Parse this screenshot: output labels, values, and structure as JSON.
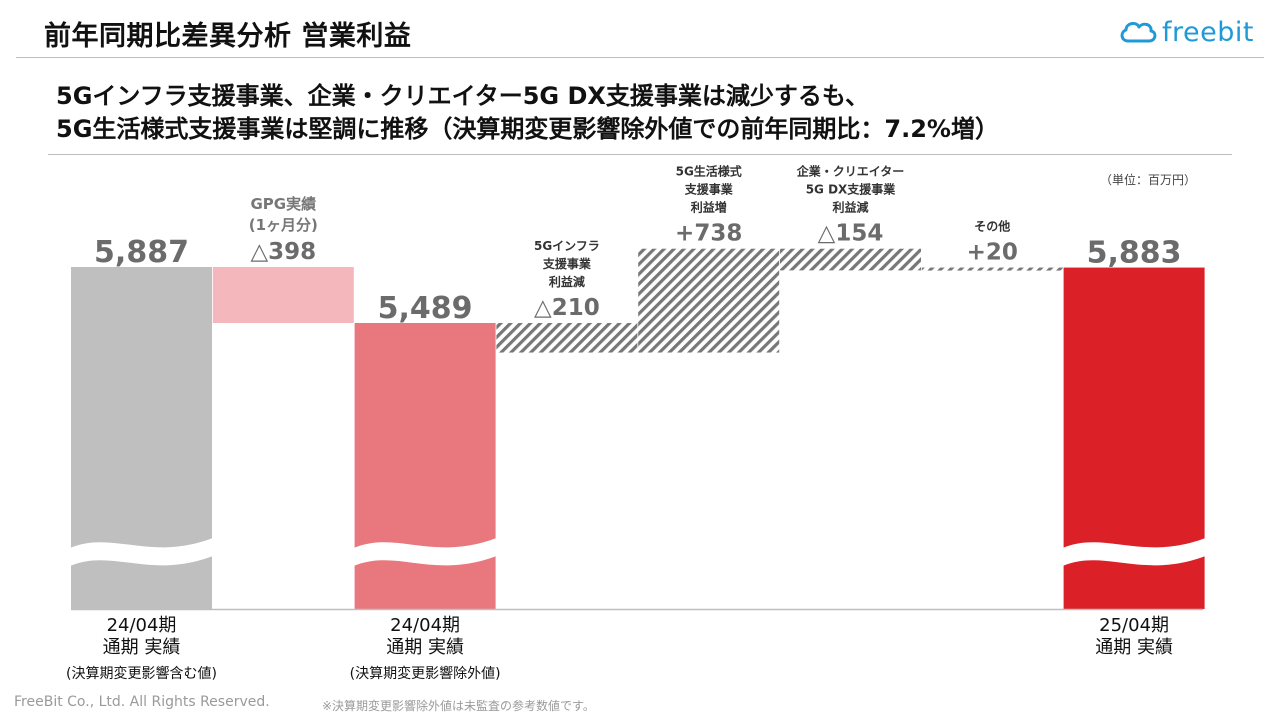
{
  "header": {
    "title": "前年同期比差異分析 営業利益",
    "logo_text": "freebit"
  },
  "subtitle": {
    "line1": "5Gインフラ支援事業、企業・クリエイター5G DX支援事業は減少するも、",
    "line2": "5G生活様式支援事業は堅調に推移（決算期変更影響除外値での前年同期比：7.2%増）"
  },
  "unit": "（単位：百万円）",
  "footer": {
    "copyright": "FreeBit Co., Ltd. All Rights Reserved.",
    "note": "※決算期変更影響除外値は未監査の参考数値です。"
  },
  "colors": {
    "gray_total": "#bfbfbf",
    "pink_light": "#f4b8bc",
    "pink_mid": "#e8787e",
    "red_total": "#dc2028",
    "hatch": "#777777",
    "value_text": "#6b6b6b"
  },
  "chart_data": {
    "type": "bar",
    "subtype": "waterfall",
    "axis_break": true,
    "bars": [
      {
        "kind": "total",
        "value": 5887,
        "value_label": "5,887",
        "label_lines": [],
        "category_lines": [
          "24/04期",
          "通期 実績"
        ],
        "category_note": "(決算期変更影響含む値)",
        "color": "#bfbfbf",
        "pattern": "solid"
      },
      {
        "kind": "delta",
        "value": -398,
        "value_label": "△398",
        "label_lines": [
          "GPG実績",
          "(1ヶ月分)"
        ],
        "category_lines": [],
        "category_note": "",
        "color": "#f4b8bc",
        "pattern": "solid"
      },
      {
        "kind": "total",
        "value": 5489,
        "value_label": "5,489",
        "label_lines": [],
        "category_lines": [
          "24/04期",
          "通期 実績"
        ],
        "category_note": "(決算期変更影響除外値)",
        "color": "#e8787e",
        "pattern": "solid"
      },
      {
        "kind": "delta",
        "value": -210,
        "value_label": "△210",
        "label_lines": [
          "5Gインフラ",
          "支援事業",
          "利益減"
        ],
        "category_lines": [],
        "category_note": "",
        "color": "#777777",
        "pattern": "hatch"
      },
      {
        "kind": "delta",
        "value": 738,
        "value_label": "+738",
        "label_lines": [
          "5G生活様式",
          "支援事業",
          "利益増"
        ],
        "category_lines": [],
        "category_note": "",
        "color": "#777777",
        "pattern": "hatch"
      },
      {
        "kind": "delta",
        "value": -154,
        "value_label": "△154",
        "label_lines": [
          "企業・クリエイター",
          "5G DX支援事業",
          "利益減"
        ],
        "category_lines": [],
        "category_note": "",
        "color": "#777777",
        "pattern": "hatch"
      },
      {
        "kind": "delta",
        "value": 20,
        "value_label": "+20",
        "label_lines": [
          "その他"
        ],
        "category_lines": [],
        "category_note": "",
        "color": "#777777",
        "pattern": "hatch"
      },
      {
        "kind": "total",
        "value": 5883,
        "value_label": "5,883",
        "label_lines": [],
        "category_lines": [
          "25/04期",
          "通期 実績"
        ],
        "category_note": "",
        "color": "#dc2028",
        "pattern": "solid"
      }
    ]
  }
}
